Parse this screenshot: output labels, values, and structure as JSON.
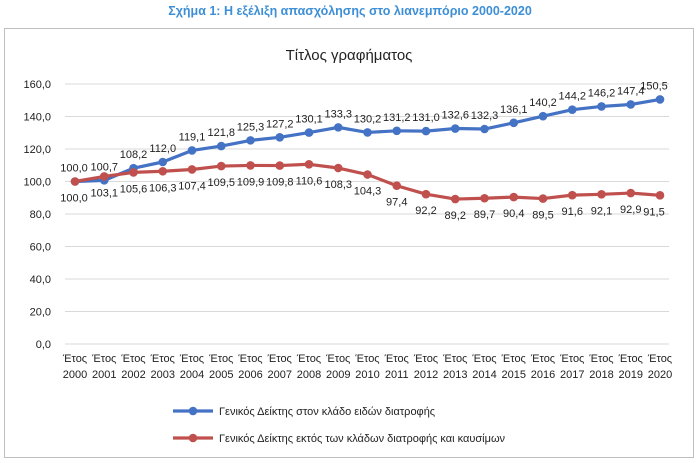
{
  "figure_caption": "Σχήμα 1: Η εξέλιξη απασχόλησης στο λιανεμπόριο 2000-2020",
  "colors": {
    "caption": "#3d8fd6",
    "series_blue": "#4472c4",
    "series_red": "#c0504d",
    "grid": "#d9d9d9",
    "frame": "#bfbfbf"
  },
  "chart_data": {
    "type": "line",
    "title": "Τίτλος γραφήματος",
    "xlabel": "",
    "ylabel": "",
    "categories": [
      "Έτος 2000",
      "Έτος 2001",
      "Έτος 2002",
      "Έτος 2003",
      "Έτος 2004",
      "Έτος 2005",
      "Έτος 2006",
      "Έτος 2007",
      "Έτος 2008",
      "Έτος 2009",
      "Έτος 2010",
      "Έτος 2011",
      "Έτος 2012",
      "Έτος 2013",
      "Έτος 2014",
      "Έτος 2015",
      "Έτος 2016",
      "Έτος 2017",
      "Έτος 2018",
      "Έτος 2019",
      "Έτος 2020"
    ],
    "category_parts": [
      [
        "Έτος",
        "2000"
      ],
      [
        "Έτος",
        "2001"
      ],
      [
        "Έτος",
        "2002"
      ],
      [
        "Έτος",
        "2003"
      ],
      [
        "Έτος",
        "2004"
      ],
      [
        "Έτος",
        "2005"
      ],
      [
        "Έτος",
        "2006"
      ],
      [
        "Έτος",
        "2007"
      ],
      [
        "Έτος",
        "2008"
      ],
      [
        "Έτος",
        "2009"
      ],
      [
        "Έτος",
        "2010"
      ],
      [
        "Έτος",
        "2011"
      ],
      [
        "Έτος",
        "2012"
      ],
      [
        "Έτος",
        "2013"
      ],
      [
        "Έτος",
        "2014"
      ],
      [
        "Έτος",
        "2015"
      ],
      [
        "Έτος",
        "2016"
      ],
      [
        "Έτος",
        "2017"
      ],
      [
        "Έτος",
        "2018"
      ],
      [
        "Έτος",
        "2019"
      ],
      [
        "Έτος",
        "2020"
      ]
    ],
    "ylim": [
      0,
      160
    ],
    "yticks": [
      0,
      20,
      40,
      60,
      80,
      100,
      120,
      140,
      160
    ],
    "ytick_labels": [
      "0,0",
      "20,0",
      "40,0",
      "60,0",
      "80,0",
      "100,0",
      "120,0",
      "140,0",
      "160,0"
    ],
    "grid": true,
    "legend_position": "bottom-left",
    "series": [
      {
        "name": "Γενικός Δείκτης στον κλάδο ειδών διατροφής",
        "color": "#4472c4",
        "values": [
          100.0,
          100.7,
          108.2,
          112.0,
          119.1,
          121.8,
          125.3,
          127.2,
          130.1,
          133.3,
          130.2,
          131.2,
          131.0,
          132.6,
          132.3,
          136.1,
          140.2,
          144.2,
          146.2,
          147.4,
          150.5
        ],
        "labels": [
          "100,0",
          "100,7",
          "108,2",
          "112,0",
          "119,1",
          "121,8",
          "125,3",
          "127,2",
          "130,1",
          "133,3",
          "130,2",
          "131,2",
          "131,0",
          "132,6",
          "132,3",
          "136,1",
          "140,2",
          "144,2",
          "146,2",
          "147,4",
          "150,5"
        ]
      },
      {
        "name": "Γενικός Δείκτης εκτός των κλάδων διατροφής και καυσίμων",
        "color": "#c0504d",
        "values": [
          100.0,
          103.1,
          105.6,
          106.3,
          107.4,
          109.5,
          109.9,
          109.8,
          110.6,
          108.3,
          104.3,
          97.4,
          92.2,
          89.2,
          89.7,
          90.4,
          89.5,
          91.6,
          92.1,
          92.9,
          91.5
        ],
        "labels": [
          "100,0",
          "103,1",
          "105,6",
          "106,3",
          "107,4",
          "109,5",
          "109,9",
          "109,8",
          "110,6",
          "108,3",
          "104,3",
          "97,4",
          "92,2",
          "89,2",
          "89,7",
          "90,4",
          "89,5",
          "91,6",
          "92,1",
          "92,9",
          "91,5"
        ]
      }
    ]
  }
}
